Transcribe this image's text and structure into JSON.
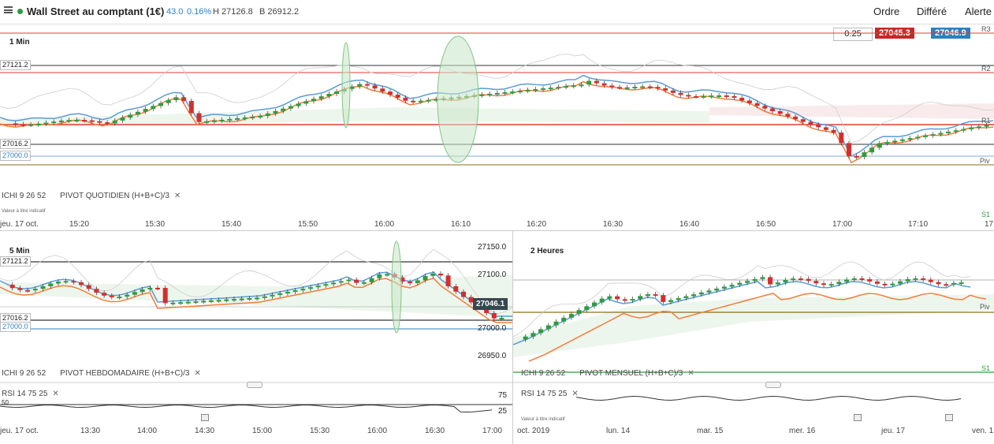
{
  "header": {
    "instrument": "Wall Street au comptant (1€)",
    "change": "43.0",
    "change_pct": "0.16%",
    "high": "H 27126.8",
    "low": "B 26912.2",
    "menu": [
      "Ordre",
      "Différé",
      "Alerte"
    ],
    "colors": {
      "up": "#2e7fbf",
      "live": "#2e9c3e"
    }
  },
  "trade": {
    "quantity": "0.25",
    "sell": "27045.3",
    "buy": "27046.9",
    "sell_color": "#c62828",
    "buy_color": "#2e7fbf"
  },
  "panel1": {
    "title": "1 Min",
    "levels": [
      {
        "label": "R3"
      },
      {
        "label": "R2"
      },
      {
        "label": "R1"
      },
      {
        "label": "Piv"
      },
      {
        "label": "S1"
      }
    ],
    "price_labels": [
      "27121.2",
      "27016.2",
      "27000.0"
    ],
    "indicators": "ICHI  9  26  52",
    "pivot": "PIVOT  QUOTIDIEN  (H+B+C)/3",
    "note": "Valeur à titre indicatif",
    "xticks": [
      "jeu. 17 oct.",
      "15:20",
      "15:30",
      "15:40",
      "15:50",
      "16:00",
      "16:10",
      "16:20",
      "16:30",
      "16:40",
      "16:50",
      "17:00",
      "17:10",
      "17"
    ]
  },
  "panel2": {
    "title": "5 Min",
    "price_labels": [
      "27121.2",
      "27016.2",
      "27000.0"
    ],
    "yticks": [
      "27150.0",
      "27100.0",
      "27046.1",
      "27000.0",
      "26950.0"
    ],
    "indicators": "ICHI  9  26  52",
    "pivot": "PIVOT  HEBDOMADAIRE  (H+B+C)/3",
    "rsi": "RSI  14  75  25",
    "rsi_levels": [
      "75",
      "25"
    ],
    "rsi_left": "50",
    "xticks": [
      "jeu. 17 oct.",
      "13:30",
      "14:00",
      "14:30",
      "15:00",
      "15:30",
      "16:00",
      "16:30",
      "17:00"
    ]
  },
  "panel3": {
    "title": "2 Heures",
    "levels": [
      {
        "label": "Piv"
      },
      {
        "label": "S1"
      }
    ],
    "indicators": "ICHI  9  26  52",
    "pivot": "PIVOT  MENSUEL  (H+B+C)/3",
    "rsi": "RSI  14  75  25",
    "note": "Valeur à titre indicatif",
    "xticks": [
      "oct. 2019",
      "lun. 14",
      "mar. 15",
      "mer. 16",
      "jeu. 17",
      "ven. 1"
    ]
  }
}
